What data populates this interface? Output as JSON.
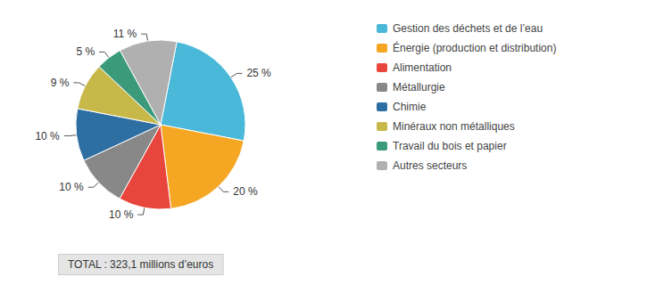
{
  "chart_data": {
    "type": "pie",
    "categories": [
      "Gestion des déchets et de l’eau",
      "Énergie (production et distribution)",
      "Alimentation",
      "Métallurgie",
      "Chimie",
      "Minéraux non métalliques",
      "Travail du bois et papier",
      "Autres secteurs"
    ],
    "values": [
      25,
      20,
      10,
      10,
      10,
      9,
      5,
      11
    ],
    "value_labels": [
      "25 %",
      "20 %",
      "10 %",
      "10 %",
      "10 %",
      "9 %",
      "5 %",
      "11 %"
    ],
    "colors": [
      "#4ab8d8",
      "#f5a623",
      "#e8453c",
      "#888888",
      "#2e6fa3",
      "#c8b84a",
      "#3a9a7a",
      "#b0b0b0"
    ],
    "data_labels": true,
    "legend": "right",
    "annotations": [
      "TOTAL : 323,1 millions d’euros"
    ]
  }
}
